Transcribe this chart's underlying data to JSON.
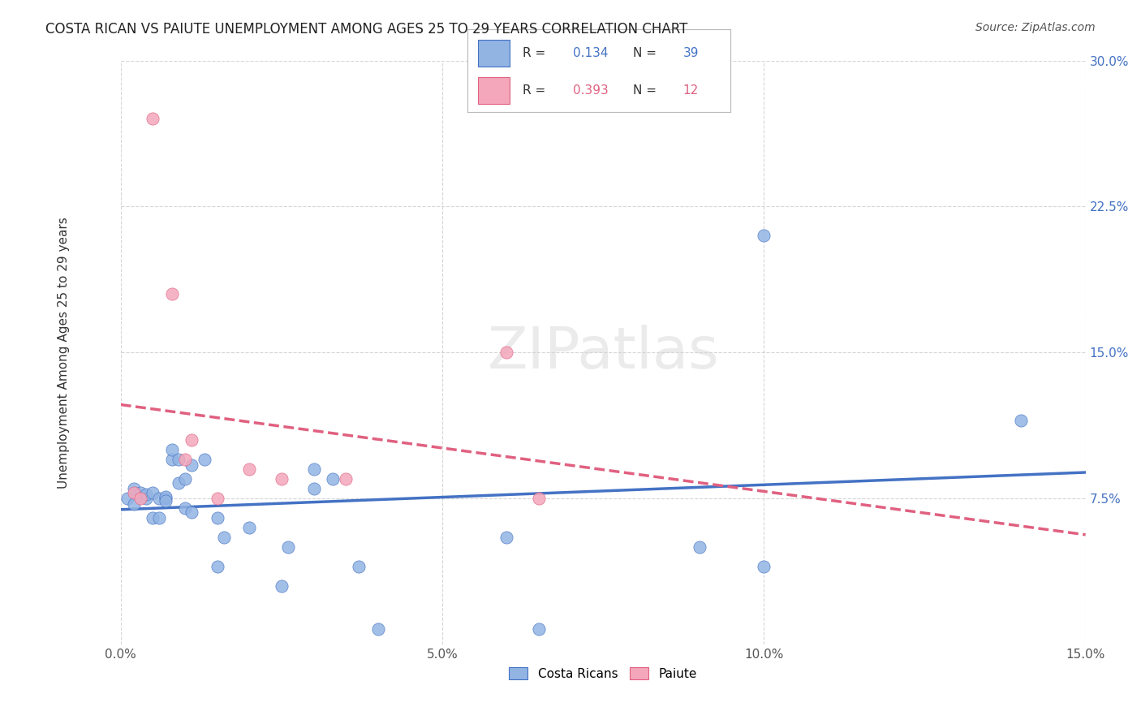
{
  "title": "COSTA RICAN VS PAIUTE UNEMPLOYMENT AMONG AGES 25 TO 29 YEARS CORRELATION CHART",
  "source": "Source: ZipAtlas.com",
  "xlabel": "",
  "ylabel": "Unemployment Among Ages 25 to 29 years",
  "xlim": [
    0,
    0.15
  ],
  "ylim": [
    0,
    0.3
  ],
  "xticks": [
    0.0,
    0.05,
    0.1,
    0.15
  ],
  "yticks": [
    0.0,
    0.075,
    0.15,
    0.225,
    0.3
  ],
  "xticklabels": [
    "0.0%",
    "5.0%",
    "10.0%",
    "15.0%"
  ],
  "yticklabels": [
    "",
    "7.5%",
    "15.0%",
    "22.5%",
    "30.0%"
  ],
  "blue_R": "0.134",
  "blue_N": "39",
  "pink_R": "0.393",
  "pink_N": "12",
  "blue_color": "#92b4e3",
  "pink_color": "#f4a7bb",
  "blue_line_color": "#4472c4",
  "pink_line_color": "#e06080",
  "watermark": "ZIPatlas",
  "blue_x": [
    0.001,
    0.002,
    0.002,
    0.003,
    0.004,
    0.004,
    0.005,
    0.005,
    0.006,
    0.006,
    0.007,
    0.007,
    0.007,
    0.008,
    0.008,
    0.009,
    0.009,
    0.01,
    0.01,
    0.011,
    0.011,
    0.013,
    0.015,
    0.015,
    0.016,
    0.02,
    0.025,
    0.026,
    0.03,
    0.03,
    0.033,
    0.037,
    0.04,
    0.06,
    0.065,
    0.09,
    0.1,
    0.1,
    0.14
  ],
  "blue_y": [
    0.075,
    0.08,
    0.072,
    0.078,
    0.075,
    0.077,
    0.078,
    0.065,
    0.065,
    0.075,
    0.075,
    0.076,
    0.074,
    0.095,
    0.1,
    0.095,
    0.083,
    0.085,
    0.07,
    0.068,
    0.092,
    0.095,
    0.065,
    0.04,
    0.055,
    0.06,
    0.03,
    0.05,
    0.08,
    0.09,
    0.085,
    0.04,
    0.008,
    0.055,
    0.008,
    0.05,
    0.04,
    0.21,
    0.115
  ],
  "pink_x": [
    0.002,
    0.003,
    0.005,
    0.008,
    0.01,
    0.011,
    0.015,
    0.02,
    0.025,
    0.035,
    0.06,
    0.065
  ],
  "pink_y": [
    0.078,
    0.075,
    0.27,
    0.18,
    0.095,
    0.105,
    0.075,
    0.09,
    0.085,
    0.085,
    0.15,
    0.075
  ]
}
